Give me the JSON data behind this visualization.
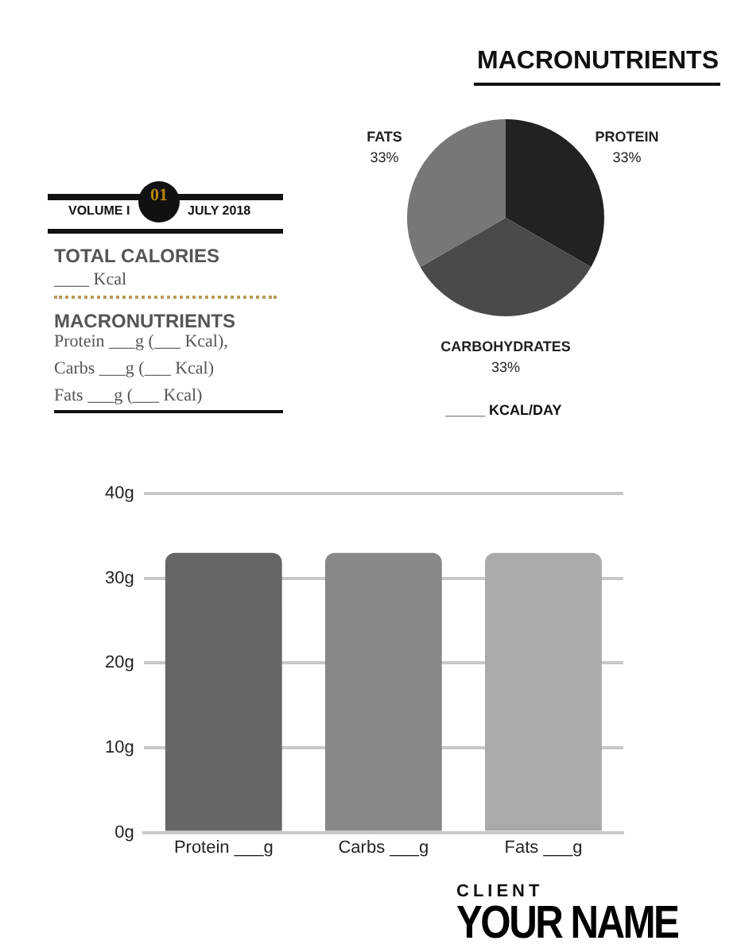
{
  "chart_data": [
    {
      "type": "other",
      "annotations": [
        "VOLUME I",
        "01",
        "JULY 2018",
        "TOTAL CALORIES",
        "____ Kcal",
        "MACRONUTRIENTS",
        "Protein ___g (___ Kcal),",
        "Carbs ___g (___ Kcal)",
        "Fats ___g (___ Kcal)"
      ]
    },
    {
      "type": "pie",
      "title": "MACRONUTRIENTS",
      "categories": [
        "PROTEIN",
        "CARBOHYDRATES",
        "FATS"
      ],
      "values": [
        33,
        33,
        33
      ],
      "colors": [
        "#222222",
        "#4a4a4a",
        "#777777"
      ],
      "value_labels": [
        "33%",
        "33%",
        "33%"
      ],
      "annotations": [
        "_____ KCAL/DAY"
      ]
    },
    {
      "type": "bar",
      "categories": [
        "Protein ___g",
        "Carbs ___g",
        "Fats ___g"
      ],
      "values": [
        33,
        33,
        33
      ],
      "colors": [
        "#666666",
        "#888888",
        "#aaaaaa"
      ],
      "ylim": [
        0,
        40
      ],
      "yticks": [
        {
          "value": 0,
          "label": "0g"
        },
        {
          "value": 10,
          "label": "10g"
        },
        {
          "value": 20,
          "label": "20g"
        },
        {
          "value": 30,
          "label": "30g"
        },
        {
          "value": 40,
          "label": "40g"
        }
      ],
      "grid": "y"
    },
    {
      "type": "other",
      "annotations": [
        "CLIENT",
        "YOUR NAME"
      ]
    }
  ]
}
